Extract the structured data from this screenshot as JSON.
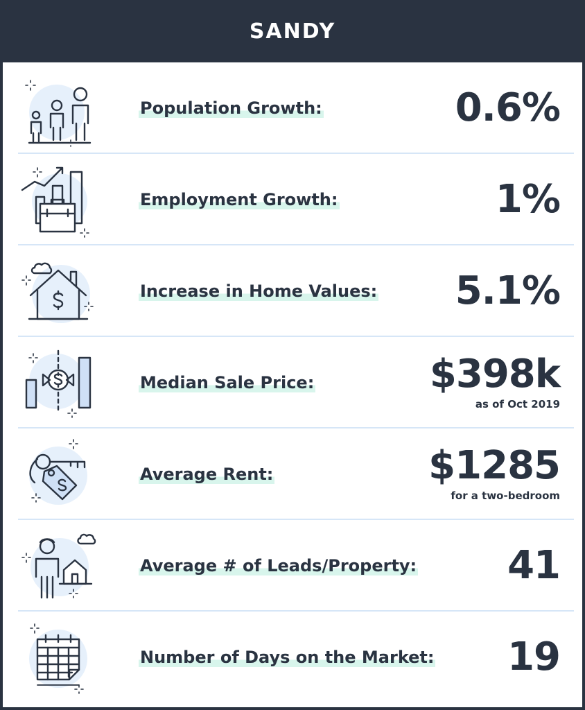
{
  "title": "SANDY",
  "rows": [
    {
      "label": "Population Growth:",
      "value": "0.6%",
      "note": "",
      "icon": "people-icon"
    },
    {
      "label": "Employment Growth:",
      "value": "1%",
      "note": "",
      "icon": "briefcase-chart-icon"
    },
    {
      "label": "Increase in Home Values:",
      "value": "5.1%",
      "note": "",
      "icon": "house-dollar-icon"
    },
    {
      "label": "Median Sale Price:",
      "value": "$398k",
      "note": "as of Oct 2019",
      "icon": "price-exchange-icon"
    },
    {
      "label": "Average Rent:",
      "value": "$1285",
      "note": "for a two-bedroom",
      "icon": "key-tag-icon"
    },
    {
      "label": "Average # of Leads/Property:",
      "value": "41",
      "note": "",
      "icon": "person-house-icon"
    },
    {
      "label": "Number of Days on the Market:",
      "value": "19",
      "note": "",
      "icon": "calendar-icon"
    }
  ],
  "colors": {
    "header_bg": "#2a3341",
    "text": "#2a3341",
    "icon_circle": "#e6f0fb",
    "divider": "#d6e6f7",
    "label_highlight": "#d8f5ec"
  }
}
